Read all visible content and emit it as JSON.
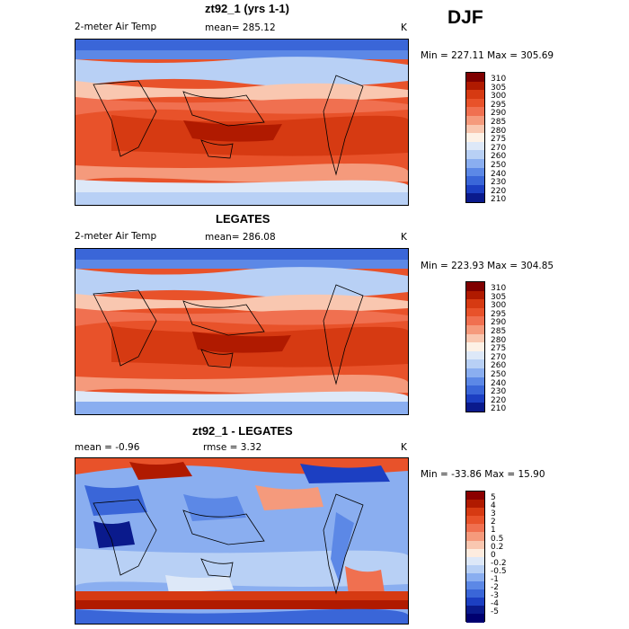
{
  "season": "DJF",
  "panels": [
    {
      "title": "zt92_1 (yrs 1-1)",
      "left_label": "2-meter Air Temp",
      "center_label": "mean= 285.12",
      "unit": "K",
      "range": "Min = 227.11 Max = 305.69",
      "colorbar_levels": [
        "310",
        "305",
        "300",
        "295",
        "290",
        "285",
        "280",
        "275",
        "270",
        "260",
        "250",
        "240",
        "230",
        "220",
        "210"
      ],
      "colors": [
        "#7f0000",
        "#b01a00",
        "#d63a12",
        "#e8522a",
        "#f07050",
        "#f59a7c",
        "#f9c7b0",
        "#fdf1e6",
        "#dde8f8",
        "#b8d0f5",
        "#8aaef0",
        "#5c88e6",
        "#3a66d8",
        "#1c3fc2",
        "#0a1a8c"
      ]
    },
    {
      "title": "LEGATES",
      "left_label": "2-meter Air Temp",
      "center_label": "mean= 286.08",
      "unit": "K",
      "range": "Min = 223.93 Max = 304.85",
      "colorbar_levels": [
        "310",
        "305",
        "300",
        "295",
        "290",
        "285",
        "280",
        "275",
        "270",
        "260",
        "250",
        "240",
        "230",
        "220",
        "210"
      ],
      "colors": [
        "#7f0000",
        "#b01a00",
        "#d63a12",
        "#e8522a",
        "#f07050",
        "#f59a7c",
        "#f9c7b0",
        "#fdf1e6",
        "#dde8f8",
        "#b8d0f5",
        "#8aaef0",
        "#5c88e6",
        "#3a66d8",
        "#1c3fc2",
        "#0a1a8c"
      ]
    },
    {
      "title": "zt92_1 - LEGATES",
      "left_label": "mean =   -0.96",
      "center_label": "rmse =    3.32",
      "unit": "K",
      "range": "Min = -33.86 Max =   15.90",
      "colorbar_levels": [
        "5",
        "4",
        "3",
        "2",
        "1",
        "0.5",
        "0.2",
        "0",
        "-0.2",
        "-0.5",
        "-1",
        "-2",
        "-3",
        "-4",
        "-5"
      ],
      "colors": [
        "#8b0000",
        "#b01a00",
        "#d63a12",
        "#e8522a",
        "#f07050",
        "#f59a7c",
        "#f9c7b0",
        "#fdecdf",
        "#dde8f8",
        "#b8d0f5",
        "#8aaef0",
        "#5c88e6",
        "#3a66d8",
        "#1c3fc2",
        "#0a1a8c",
        "#000070"
      ]
    }
  ]
}
